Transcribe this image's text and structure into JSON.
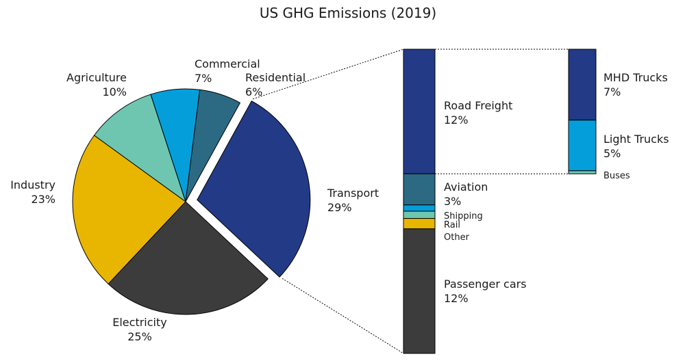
{
  "chart_data": {
    "type": "pie",
    "title": "US GHG Emissions (2019)",
    "unit": "%",
    "slices": [
      {
        "name": "Transport",
        "value": 29,
        "label": "29%",
        "color": "#233a87",
        "exploded": true
      },
      {
        "name": "Electricity",
        "value": 25,
        "label": "25%",
        "color": "#3c3c3c"
      },
      {
        "name": "Industry",
        "value": 23,
        "label": "23%",
        "color": "#e8b500"
      },
      {
        "name": "Agriculture",
        "value": 10,
        "label": "10%",
        "color": "#6ec6b1"
      },
      {
        "name": "Commercial",
        "value": 7,
        "label": "7%",
        "color": "#049fdb"
      },
      {
        "name": "Residential",
        "value": 6,
        "label": "6%",
        "color": "#2c6a84"
      }
    ],
    "transport_breakdown": {
      "type": "stacked-bar",
      "segments": [
        {
          "name": "Road Freight",
          "value": 12,
          "label": "12%",
          "color": "#233a87"
        },
        {
          "name": "Aviation",
          "value": 3,
          "label": "3%",
          "color": "#2c6a84"
        },
        {
          "name": "Shipping",
          "value": 0.6,
          "label": "",
          "color": "#049fdb"
        },
        {
          "name": "Rail",
          "value": 0.7,
          "label": "",
          "color": "#6ec6b1"
        },
        {
          "name": "Other",
          "value": 1.0,
          "label": "",
          "color": "#e8b500"
        },
        {
          "name": "Passenger cars",
          "value": 12,
          "label": "12%",
          "color": "#3c3c3c"
        }
      ]
    },
    "road_freight_breakdown": {
      "type": "stacked-bar",
      "segments": [
        {
          "name": "MHD Trucks",
          "value": 7,
          "label": "7%",
          "color": "#233a87"
        },
        {
          "name": "Light Trucks",
          "value": 5,
          "label": "5%",
          "color": "#049fdb"
        },
        {
          "name": "Buses",
          "value": 0.3,
          "label": "",
          "color": "#6ec6b1"
        }
      ]
    }
  }
}
